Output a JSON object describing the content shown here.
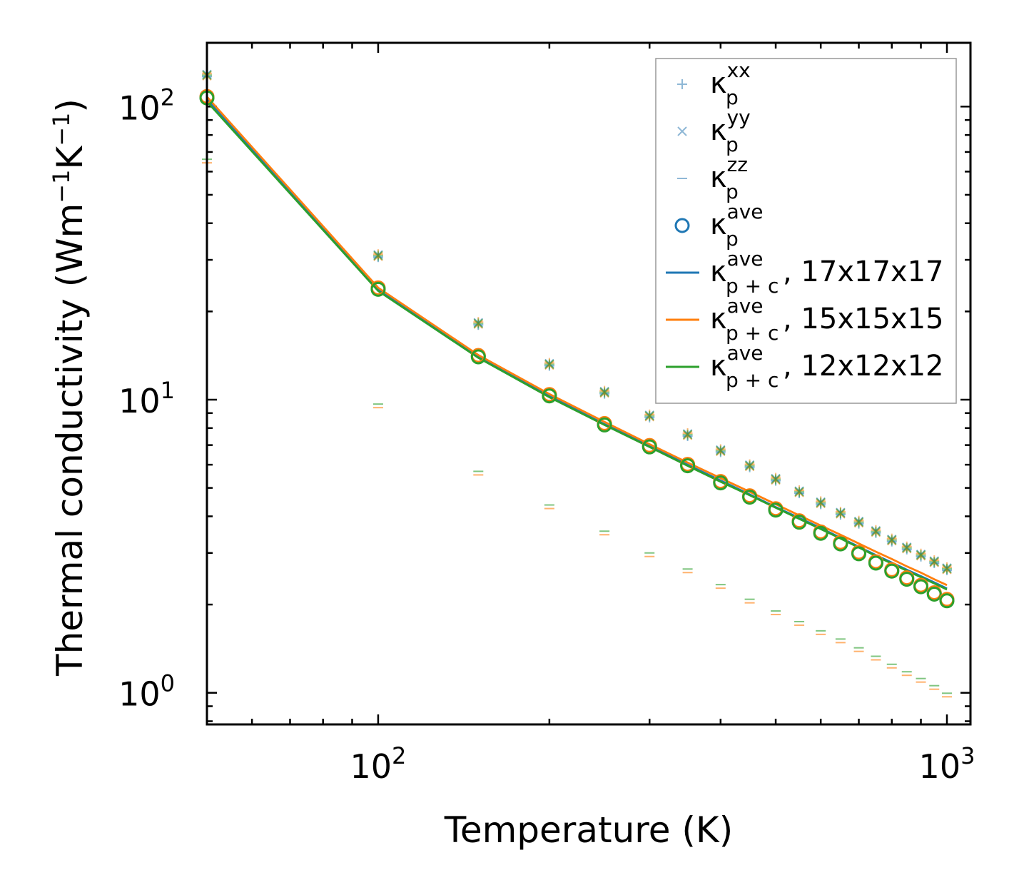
{
  "chart_data": {
    "type": "line",
    "scale": "log-log",
    "xlabel": "Temperature (K)",
    "ylabel": {
      "prefix": "Thermal conductivity (Wm",
      "sup1": "−1",
      "mid": "K",
      "sup2": "−1",
      "suffix": ")"
    },
    "xlim": [
      50,
      1100
    ],
    "ylim": [
      0.78,
      165
    ],
    "x_ticks": [
      {
        "base": "10",
        "exp": "2",
        "value": 100
      },
      {
        "base": "10",
        "exp": "3",
        "value": 1000
      }
    ],
    "y_ticks": [
      {
        "base": "10",
        "exp": "0",
        "value": 1
      },
      {
        "base": "10",
        "exp": "1",
        "value": 10
      },
      {
        "base": "10",
        "exp": "2",
        "value": 100
      }
    ],
    "x": [
      50,
      100,
      150,
      200,
      250,
      300,
      350,
      400,
      450,
      500,
      550,
      600,
      650,
      700,
      750,
      800,
      850,
      900,
      950,
      1000
    ],
    "kappa_xx": [
      128,
      31,
      18.2,
      13.2,
      10.6,
      8.8,
      7.6,
      6.7,
      5.95,
      5.35,
      4.85,
      4.45,
      4.1,
      3.82,
      3.55,
      3.32,
      3.12,
      2.95,
      2.8,
      2.65
    ],
    "kappa_yy": [
      128,
      31,
      18.2,
      13.2,
      10.6,
      8.8,
      7.6,
      6.7,
      5.95,
      5.35,
      4.85,
      4.45,
      4.1,
      3.82,
      3.55,
      3.32,
      3.12,
      2.95,
      2.8,
      2.65
    ],
    "kappa_zz": [
      65,
      9.5,
      5.6,
      4.3,
      3.5,
      2.95,
      2.6,
      2.3,
      2.05,
      1.87,
      1.72,
      1.6,
      1.5,
      1.4,
      1.31,
      1.23,
      1.16,
      1.1,
      1.04,
      0.98
    ],
    "kappa_ave": [
      107,
      23.8,
      14.0,
      10.3,
      8.2,
      6.9,
      5.95,
      5.2,
      4.65,
      4.2,
      3.82,
      3.5,
      3.22,
      2.98,
      2.77,
      2.6,
      2.44,
      2.3,
      2.17,
      2.06
    ],
    "series": [
      {
        "name": "17x17x17",
        "color": "#1f77b4",
        "values": [
          106,
          23.7,
          14.0,
          10.3,
          8.25,
          6.95,
          6.0,
          5.3,
          4.75,
          4.3,
          3.95,
          3.65,
          3.38,
          3.15,
          2.95,
          2.78,
          2.63,
          2.5,
          2.38,
          2.27
        ]
      },
      {
        "name": "15x15x15",
        "color": "#ff7f0e",
        "values": [
          108,
          24.1,
          14.2,
          10.45,
          8.4,
          7.05,
          6.1,
          5.4,
          4.85,
          4.4,
          4.03,
          3.72,
          3.46,
          3.23,
          3.03,
          2.86,
          2.7,
          2.57,
          2.44,
          2.33
        ]
      },
      {
        "name": "12x12x12",
        "color": "#2ca02c",
        "values": [
          104,
          23.5,
          13.9,
          10.2,
          8.2,
          6.9,
          5.95,
          5.25,
          4.72,
          4.28,
          3.92,
          3.62,
          3.36,
          3.13,
          2.93,
          2.76,
          2.61,
          2.48,
          2.36,
          2.25
        ]
      }
    ],
    "legend": {
      "placement": "top-right",
      "entries": [
        {
          "symbol": "κ",
          "sub": "p",
          "sup": "xx",
          "suffix": ""
        },
        {
          "symbol": "κ",
          "sub": "p",
          "sup": "yy",
          "suffix": ""
        },
        {
          "symbol": "κ",
          "sub": "p",
          "sup": "zz",
          "suffix": ""
        },
        {
          "symbol": "κ",
          "sub": "p",
          "sup": "ave",
          "suffix": ""
        },
        {
          "symbol": "κ",
          "sub": "p + c",
          "sup": "ave",
          "suffix": ", 17x17x17"
        },
        {
          "symbol": "κ",
          "sub": "p + c",
          "sup": "ave",
          "suffix": ", 15x15x15"
        },
        {
          "symbol": "κ",
          "sub": "p + c",
          "sup": "ave",
          "suffix": ", 12x12x12"
        }
      ]
    },
    "colors": {
      "blue": "#1f77b4",
      "orange": "#ff7f0e",
      "green": "#2ca02c",
      "light_blue": "#8fb8d6"
    }
  }
}
